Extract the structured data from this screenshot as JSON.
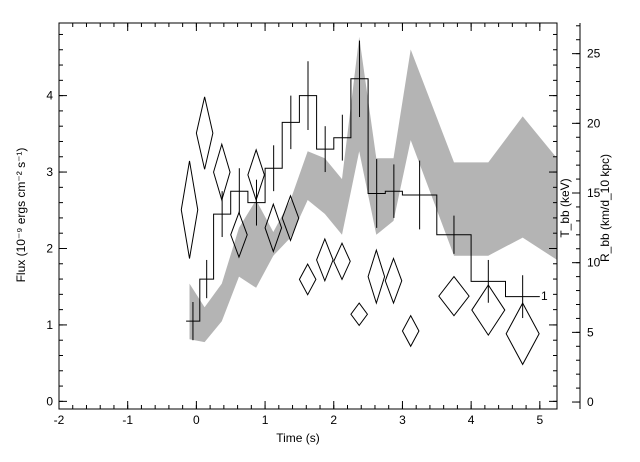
{
  "chart_data": {
    "type": "line",
    "title": "",
    "xlabel": "Time (s)",
    "ylabel_left": "Flux (10⁻⁹ ergs cm⁻² s⁻¹)",
    "ylabel_right_1": "T_bb (keV)",
    "ylabel_right_2": "R_bb (km/d_10 kpc)",
    "xlim": [
      -2,
      5.25
    ],
    "ylim_left": [
      -0.1,
      4.95
    ],
    "ylim_right": [
      -0.5,
      27.2
    ],
    "x_ticks": [
      -2,
      -1,
      0,
      1,
      2,
      3,
      4,
      5
    ],
    "y_ticks_left": [
      0,
      1,
      2,
      3,
      4
    ],
    "y_ticks_right": [
      0,
      5,
      10,
      15,
      20,
      25
    ],
    "grid": false,
    "annotation": "1",
    "series": [
      {
        "role": "flux histogram with error bars",
        "color": "#000000",
        "bins": [
          {
            "x0": -0.15,
            "x1": 0.05,
            "y": 1.05,
            "err": 0.25
          },
          {
            "x0": 0.05,
            "x1": 0.25,
            "y": 1.6,
            "err": 0.25
          },
          {
            "x0": 0.25,
            "x1": 0.5,
            "y": 2.45,
            "err": 0.3
          },
          {
            "x0": 0.5,
            "x1": 0.75,
            "y": 2.75,
            "err": 0.3
          },
          {
            "x0": 0.75,
            "x1": 1.0,
            "y": 2.6,
            "err": 0.3
          },
          {
            "x0": 1.0,
            "x1": 1.25,
            "y": 3.05,
            "err": 0.3
          },
          {
            "x0": 1.25,
            "x1": 1.5,
            "y": 3.65,
            "err": 0.35
          },
          {
            "x0": 1.5,
            "x1": 1.75,
            "y": 4.0,
            "err": 0.45
          },
          {
            "x0": 1.75,
            "x1": 2.0,
            "y": 3.3,
            "err": 0.3
          },
          {
            "x0": 2.0,
            "x1": 2.25,
            "y": 3.45,
            "err": 0.3
          },
          {
            "x0": 2.25,
            "x1": 2.5,
            "y": 4.22,
            "err": 0.5
          },
          {
            "x0": 2.5,
            "x1": 2.75,
            "y": 2.72,
            "err": 0.45
          },
          {
            "x0": 2.75,
            "x1": 3.0,
            "y": 2.75,
            "err": 0.35
          },
          {
            "x0": 3.0,
            "x1": 3.5,
            "y": 2.7,
            "err": 0.45
          },
          {
            "x0": 3.5,
            "x1": 4.0,
            "y": 2.18,
            "err": 0.25
          },
          {
            "x0": 4.0,
            "x1": 4.5,
            "y": 1.57,
            "err": 0.28
          },
          {
            "x0": 4.5,
            "x1": 5.0,
            "y": 1.37,
            "err": 0.28
          }
        ]
      },
      {
        "role": "T_bb (keV) diamonds, right axis",
        "color": "#000000",
        "points": [
          {
            "x": -0.1,
            "y": 13.8,
            "dx": 0.12,
            "dy": 3.5
          },
          {
            "x": 0.12,
            "y": 19.3,
            "dx": 0.12,
            "dy": 2.6
          },
          {
            "x": 0.37,
            "y": 16.5,
            "dx": 0.12,
            "dy": 2.0
          },
          {
            "x": 0.62,
            "y": 12.0,
            "dx": 0.12,
            "dy": 1.6
          },
          {
            "x": 0.87,
            "y": 16.3,
            "dx": 0.12,
            "dy": 1.8
          },
          {
            "x": 1.12,
            "y": 12.5,
            "dx": 0.12,
            "dy": 1.7
          },
          {
            "x": 1.37,
            "y": 13.2,
            "dx": 0.12,
            "dy": 1.6
          },
          {
            "x": 1.62,
            "y": 8.8,
            "dx": 0.12,
            "dy": 1.1
          },
          {
            "x": 1.87,
            "y": 10.2,
            "dx": 0.12,
            "dy": 1.5
          },
          {
            "x": 2.12,
            "y": 10.1,
            "dx": 0.12,
            "dy": 1.3
          },
          {
            "x": 2.37,
            "y": 6.3,
            "dx": 0.12,
            "dy": 0.8
          },
          {
            "x": 2.62,
            "y": 9.0,
            "dx": 0.12,
            "dy": 1.9
          },
          {
            "x": 2.87,
            "y": 8.7,
            "dx": 0.12,
            "dy": 1.6
          },
          {
            "x": 3.12,
            "y": 5.1,
            "dx": 0.12,
            "dy": 1.1
          },
          {
            "x": 3.75,
            "y": 7.6,
            "dx": 0.22,
            "dy": 1.4
          },
          {
            "x": 4.25,
            "y": 6.6,
            "dx": 0.24,
            "dy": 1.8
          },
          {
            "x": 4.75,
            "y": 4.9,
            "dx": 0.24,
            "dy": 2.2
          }
        ]
      },
      {
        "role": "R_bb (km/d_10 kpc) band, right axis",
        "color": "#b4b4b4",
        "x": [
          -0.1,
          0.12,
          0.37,
          0.62,
          0.87,
          1.12,
          1.37,
          1.62,
          1.87,
          2.12,
          2.37,
          2.62,
          2.87,
          3.12,
          3.75,
          4.25,
          4.75,
          5.25
        ],
        "upper": [
          8.5,
          6.8,
          8.5,
          12.5,
          14.5,
          12.2,
          14.5,
          18.0,
          17.5,
          16.0,
          26.2,
          17.5,
          17.5,
          25.3,
          17.2,
          17.2,
          20.5,
          17.5
        ],
        "lower": [
          4.5,
          4.3,
          5.8,
          9.0,
          8.2,
          10.5,
          11.8,
          14.5,
          13.5,
          12.0,
          18.0,
          12.0,
          13.0,
          18.8,
          10.5,
          10.5,
          11.8,
          10.2
        ]
      }
    ]
  }
}
